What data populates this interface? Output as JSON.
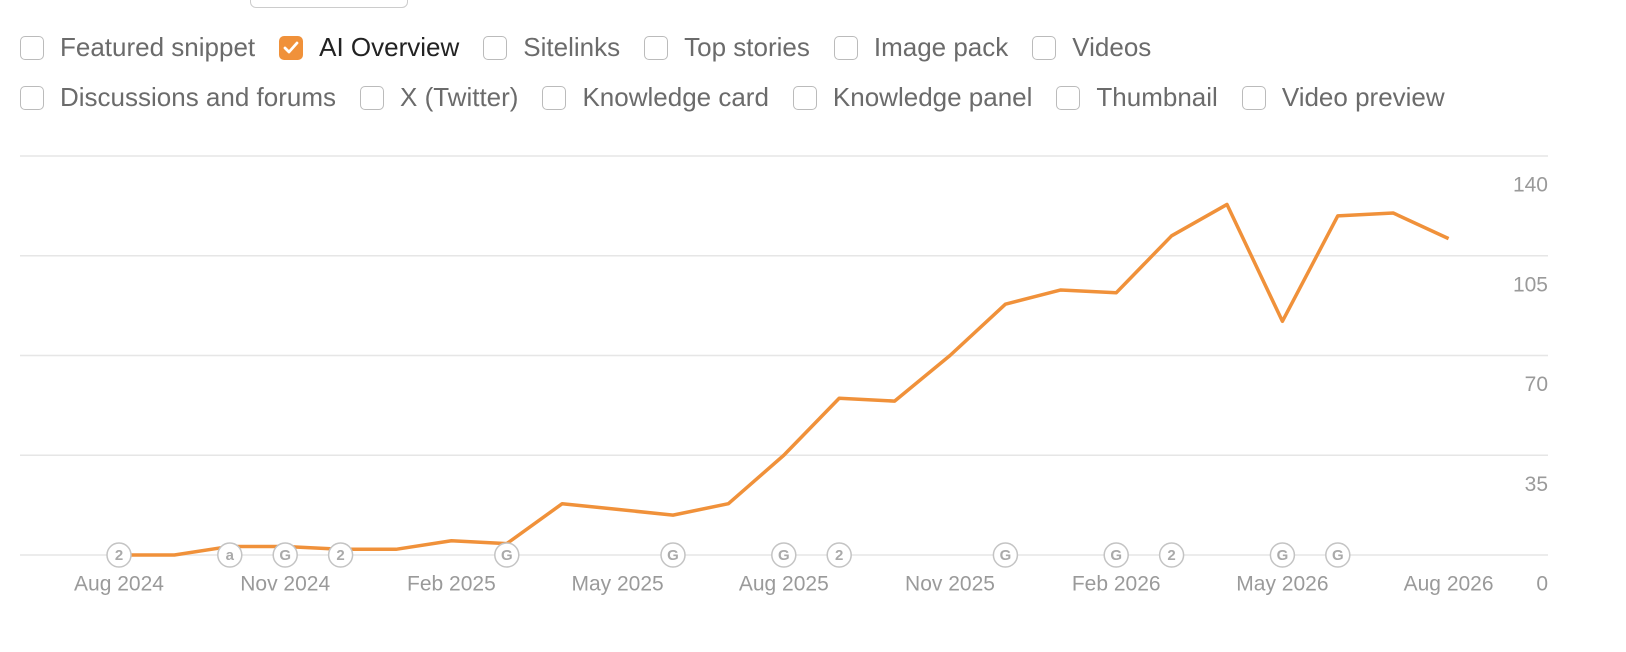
{
  "filters": {
    "rows": [
      [
        {
          "label": "Featured snippet",
          "checked": false
        },
        {
          "label": "AI Overview",
          "checked": true
        },
        {
          "label": "Sitelinks",
          "checked": false
        },
        {
          "label": "Top stories",
          "checked": false
        },
        {
          "label": "Image pack",
          "checked": false
        },
        {
          "label": "Videos",
          "checked": false
        }
      ],
      [
        {
          "label": "Discussions and forums",
          "checked": false
        },
        {
          "label": "X (Twitter)",
          "checked": false
        },
        {
          "label": "Knowledge card",
          "checked": false
        },
        {
          "label": "Knowledge panel",
          "checked": false
        },
        {
          "label": "Thumbnail",
          "checked": false
        },
        {
          "label": "Video preview",
          "checked": false
        }
      ]
    ]
  },
  "chart_data": {
    "type": "line",
    "categories": [
      "Aug 2024",
      null,
      null,
      "Nov 2024",
      null,
      null,
      "Feb 2025",
      null,
      null,
      "May 2025",
      null,
      null,
      "Aug 2025",
      null,
      null,
      "Nov 2025",
      null,
      null,
      "Feb 2026",
      null,
      null,
      "May 2026",
      null,
      null,
      "Aug 2026"
    ],
    "values": [
      0,
      0,
      3,
      3,
      2,
      2,
      5,
      4,
      18,
      16,
      14,
      18,
      35,
      55,
      54,
      70,
      88,
      93,
      92,
      112,
      123,
      82,
      119,
      120,
      111
    ],
    "markers": [
      "2",
      null,
      "a",
      "G",
      "2",
      null,
      null,
      "G",
      null,
      null,
      "G",
      null,
      "G",
      "2",
      null,
      null,
      "G",
      null,
      "G",
      "2",
      null,
      "G",
      "G",
      null,
      null
    ],
    "color": "#f0913a",
    "ylim": [
      0,
      140
    ],
    "yticks": [
      0,
      35,
      70,
      105,
      140
    ],
    "grid": true
  }
}
